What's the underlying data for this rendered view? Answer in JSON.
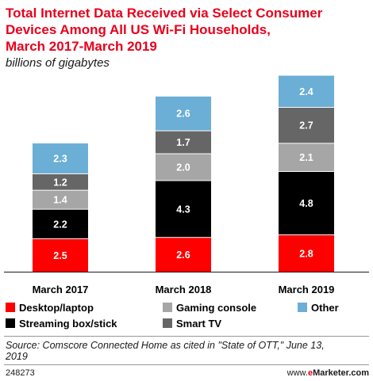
{
  "chart_data": {
    "type": "bar",
    "stacked": true,
    "title_lines": [
      "Total Internet Data Received via Select Consumer",
      "Devices Among All US Wi-Fi Households,",
      "March 2017-March 2019"
    ],
    "subtitle": "billions of gigabytes",
    "categories": [
      "March 2017",
      "March 2018",
      "March 2019"
    ],
    "series": [
      {
        "name": "Desktop/laptop",
        "color": "#ff0000",
        "values": [
          2.5,
          2.6,
          2.8
        ],
        "labels": [
          "2.5",
          "2.6",
          "2.8"
        ]
      },
      {
        "name": "Streaming box/stick",
        "color": "#000000",
        "values": [
          2.2,
          4.3,
          4.8
        ],
        "labels": [
          "2.2",
          "4.3",
          "4.8"
        ]
      },
      {
        "name": "Gaming console",
        "color": "#a6a6a6",
        "values": [
          1.4,
          2.0,
          2.1
        ],
        "labels": [
          "1.4",
          "2.0",
          "2.1"
        ]
      },
      {
        "name": "Smart TV",
        "color": "#666666",
        "values": [
          1.2,
          1.7,
          2.7
        ],
        "labels": [
          "1.2",
          "1.7",
          "2.7"
        ]
      },
      {
        "name": "Other",
        "color": "#6baed6",
        "values": [
          2.3,
          2.6,
          2.4
        ],
        "labels": [
          "2.3",
          "2.6",
          "2.4"
        ]
      }
    ],
    "legend": "bottom"
  },
  "source_lines": [
    "Source: Comscore Connected Home as cited in \"State of OTT,\" June 13,",
    "2019"
  ],
  "footer": {
    "id": "248273",
    "brand_prefix": "www.",
    "brand_accent": "e",
    "brand_rest": "Marketer.com"
  },
  "colors": {
    "title": "#e8001c",
    "text": "#1a1a1a",
    "segment_label_dark_bg": "#ffffff",
    "segment_label_light_bg": "#ffffff",
    "brand_accent": "#e8001c",
    "divider": "#999999"
  }
}
